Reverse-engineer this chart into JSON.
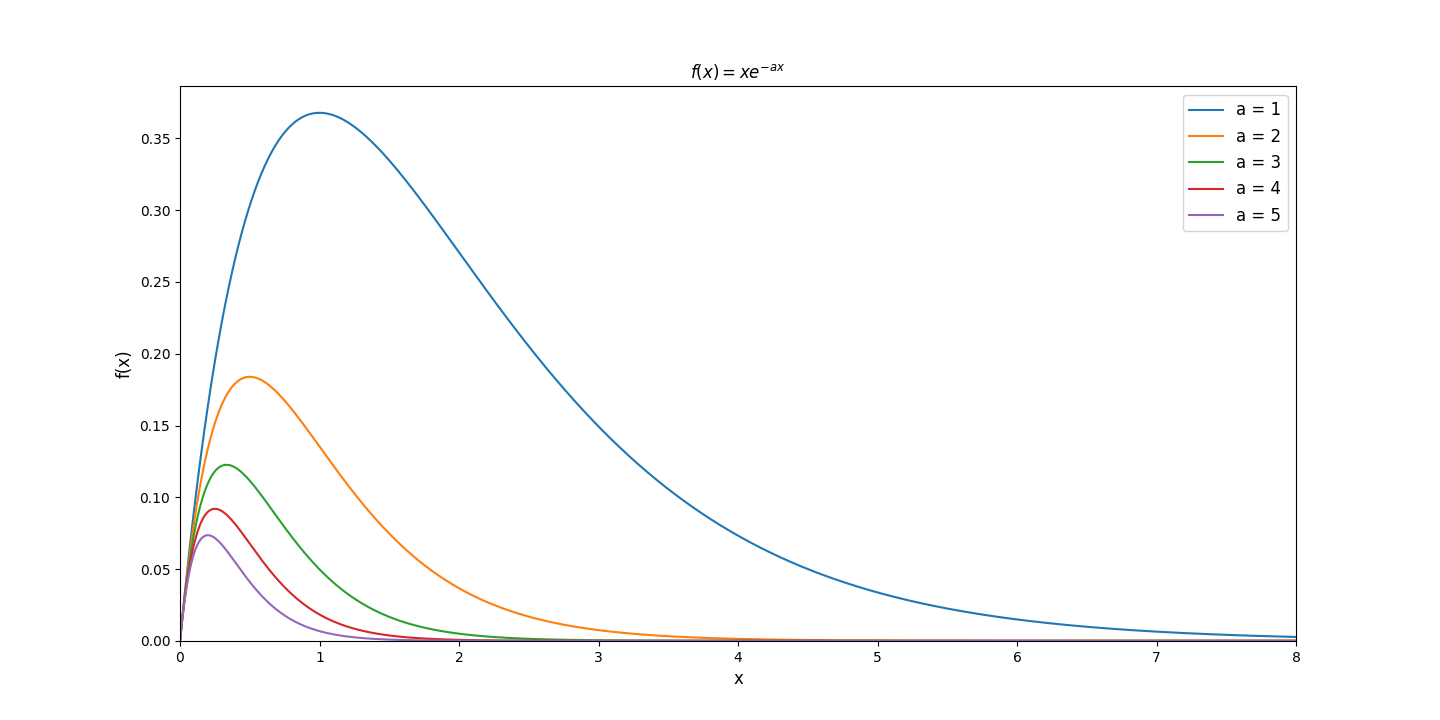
{
  "title": "$f(x) = xe^{-ax}$",
  "xlabel": "x",
  "ylabel": "f(x)",
  "x_min": 0,
  "x_max": 8,
  "a_values": [
    1,
    2,
    3,
    4,
    5
  ],
  "colors": [
    "#1f77b4",
    "#ff7f0e",
    "#2ca02c",
    "#d62728",
    "#9467bd"
  ],
  "legend_labels": [
    "a = 1",
    "a = 2",
    "a = 3",
    "a = 4",
    "a = 5"
  ],
  "n_points": 1000,
  "title_fontsize": 12,
  "label_fontsize": 12,
  "legend_fontsize": 12
}
